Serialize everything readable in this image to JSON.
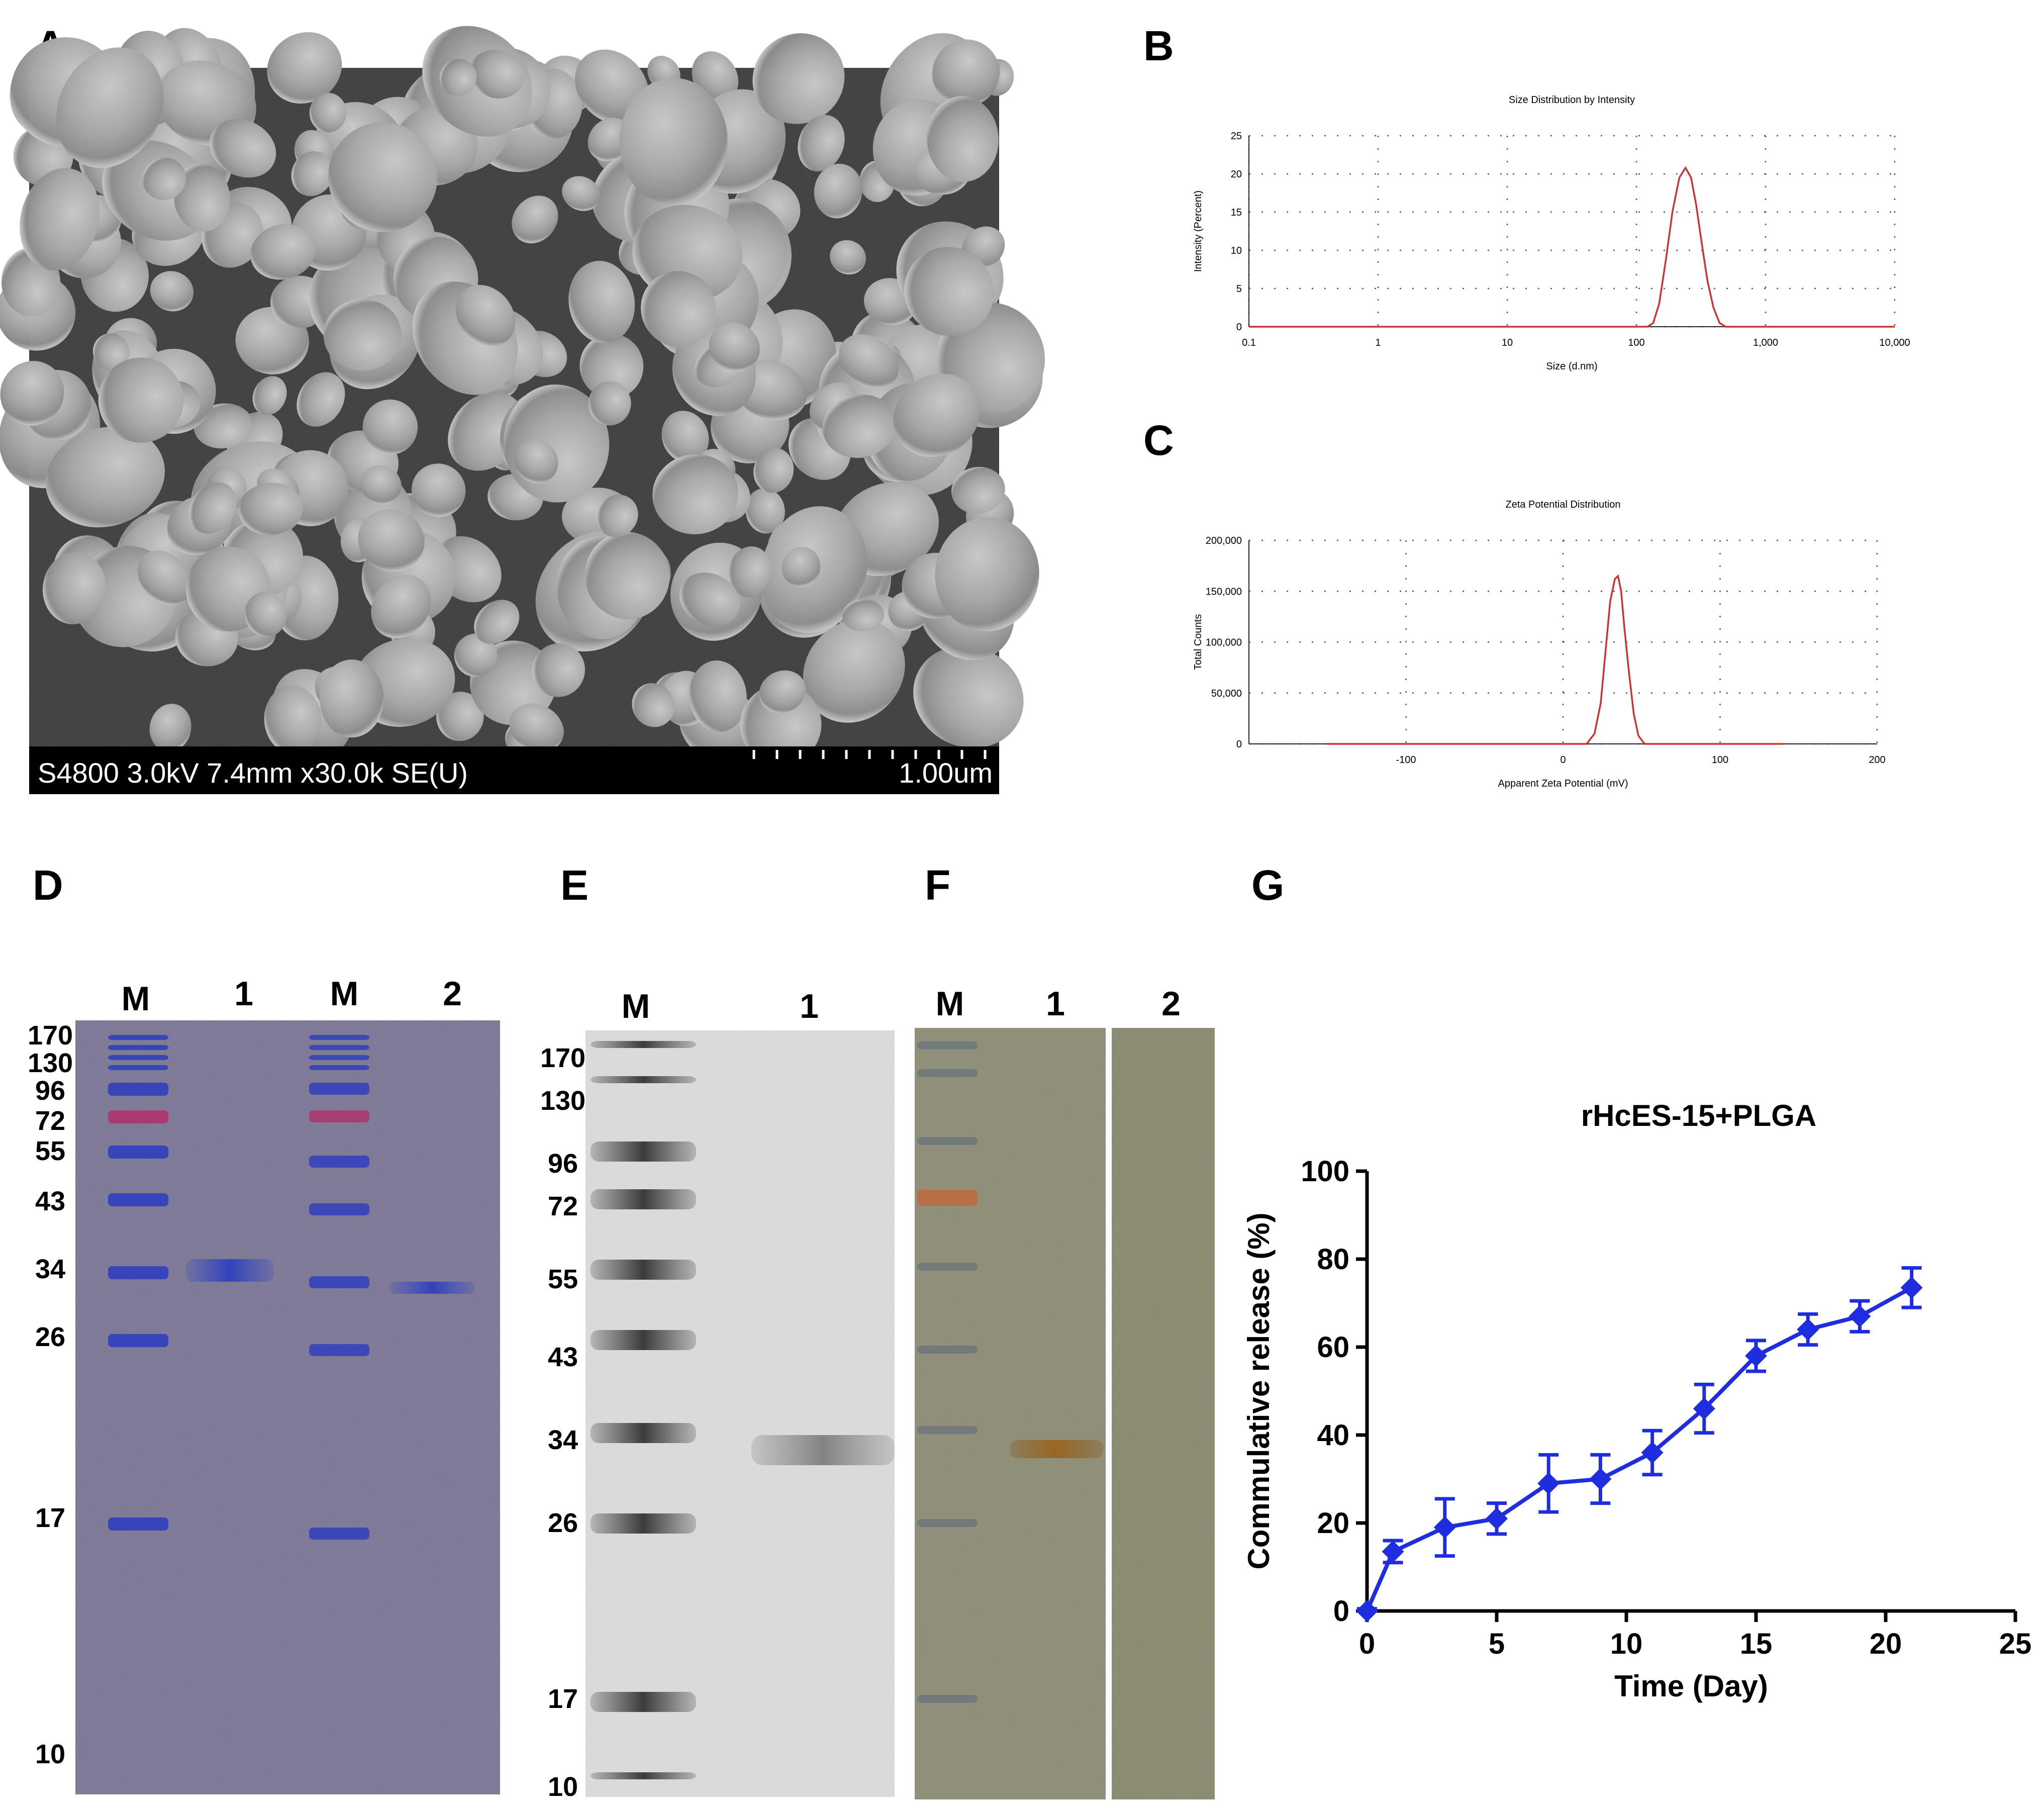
{
  "panel_letters": [
    "A",
    "B",
    "C",
    "D",
    "E",
    "F",
    "G"
  ],
  "sem": {
    "info_bar": "S4800 3.0kV 7.4mm x30.0k SE(U)",
    "scale_bar": "1.00um"
  },
  "chart_data": [
    {
      "id": "B",
      "type": "line",
      "title": "Size Distribution by Intensity",
      "xlabel": "Size (d.nm)",
      "ylabel": "Intensity (Percent)",
      "xscale": "log",
      "xlim": [
        0.1,
        10000
      ],
      "ylim": [
        0,
        25
      ],
      "xticks": [
        0.1,
        1,
        10,
        100,
        1000,
        10000
      ],
      "xtick_labels": [
        "0.1",
        "1",
        "10",
        "100",
        "1,000",
        "10,000"
      ],
      "yticks": [
        0,
        5,
        10,
        15,
        20,
        25
      ],
      "ytick_labels": [
        "0",
        "5",
        "10",
        "15",
        "20",
        "25"
      ],
      "grid": true,
      "line_color": "#cc3333",
      "series": [
        {
          "x": [
            0.1,
            100,
            122,
            135,
            150,
            170,
            190,
            215,
            240,
            265,
            290,
            320,
            355,
            395,
            440,
            490,
            10000
          ],
          "y": [
            0,
            0,
            0,
            0.5,
            3,
            9,
            15,
            19.5,
            20.8,
            19.5,
            16,
            11,
            6,
            2.5,
            0.5,
            0,
            0
          ]
        }
      ]
    },
    {
      "id": "C",
      "type": "line",
      "title": "Zeta Potential Distribution",
      "xlabel": "Apparent Zeta Potential (mV)",
      "ylabel": "Total Counts",
      "xlim": [
        -200,
        200
      ],
      "ylim": [
        0,
        200000
      ],
      "xticks": [
        -100,
        0,
        100,
        200
      ],
      "xtick_labels": [
        "-100",
        "0",
        "100",
        "200"
      ],
      "yticks": [
        0,
        50000,
        100000,
        150000,
        200000
      ],
      "ytick_labels": [
        "0",
        "50,000",
        "100,000",
        "150,000",
        "200,000"
      ],
      "grid": true,
      "line_color": "#cc3333",
      "series": [
        {
          "x": [
            -150,
            0,
            15,
            20,
            24,
            27,
            30,
            33,
            35,
            37,
            39,
            42,
            45,
            48,
            52,
            140
          ],
          "y": [
            0,
            0,
            0,
            10000,
            40000,
            90000,
            140000,
            162000,
            165000,
            150000,
            115000,
            70000,
            30000,
            8000,
            0,
            0
          ]
        }
      ]
    },
    {
      "id": "G",
      "type": "line",
      "title": "rHcES-15+PLGA",
      "xlabel": "Time (Day)",
      "ylabel": "Commulative release (%)",
      "xlim": [
        0,
        25
      ],
      "ylim": [
        0,
        100
      ],
      "xticks": [
        0,
        5,
        10,
        15,
        20,
        25
      ],
      "yticks": [
        0,
        20,
        40,
        60,
        80,
        100
      ],
      "grid": false,
      "line_color": "#1f2de0",
      "series": [
        {
          "x": [
            0,
            1,
            3,
            5,
            7,
            9,
            11,
            13,
            15,
            17,
            19,
            21
          ],
          "y": [
            0,
            13.5,
            19,
            21,
            29,
            30,
            36,
            46,
            58,
            64,
            67,
            73.5
          ],
          "err": [
            0.5,
            2.5,
            6.5,
            3.5,
            6.5,
            5.5,
            5.0,
            5.5,
            3.5,
            3.5,
            3.5,
            4.5
          ]
        }
      ]
    }
  ],
  "gels": {
    "D": {
      "lane_labels": [
        "M",
        "1",
        "M",
        "2"
      ],
      "marker_labels": [
        "170",
        "130",
        "96",
        "72",
        "55",
        "43",
        "34",
        "26",
        "17",
        "10"
      ]
    },
    "E": {
      "lane_labels": [
        "M",
        "1"
      ],
      "marker_labels": [
        "170",
        "130",
        "96",
        "72",
        "55",
        "43",
        "34",
        "26",
        "17",
        "10"
      ]
    },
    "F": {
      "lane_labels": [
        "M",
        "1",
        "2"
      ]
    }
  }
}
